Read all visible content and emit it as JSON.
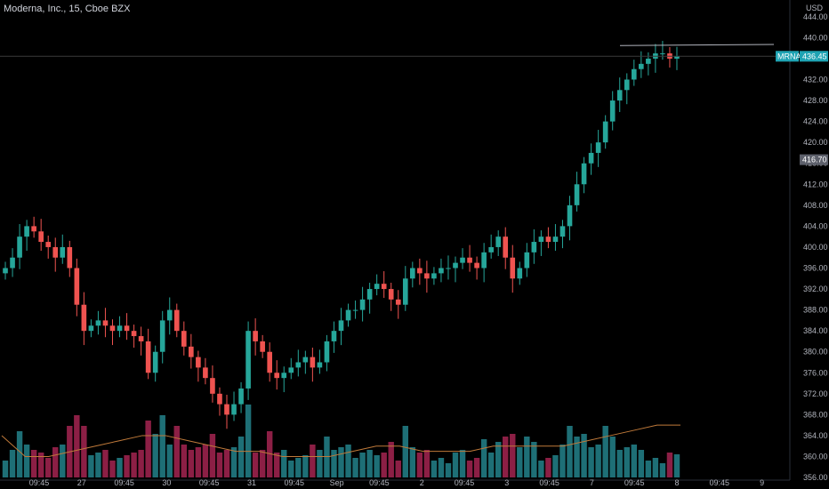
{
  "header": {
    "symbol_title": "Moderna, Inc., 15, Cboe BZX",
    "currency": "USD"
  },
  "markers": {
    "symbol": "MRNA",
    "last_price": "436.45",
    "crosshair_price": "416.70"
  },
  "colors": {
    "background": "#000000",
    "up": "#26a69a",
    "down": "#ef5350",
    "up_volume": "#1e6f76",
    "down_volume": "#8c1f45",
    "volume_ma": "#c07a3a",
    "tag": "#1fa3b3",
    "crosshair_tag": "#5d606b",
    "trendline": "#b2b5be"
  },
  "chart_data": {
    "type": "candlestick",
    "title": "Moderna, Inc., 15, Cboe BZX",
    "ylabel": "USD",
    "y_ticks": [
      "444.00",
      "440.00",
      "436.00",
      "432.00",
      "428.00",
      "424.00",
      "420.00",
      "416.00",
      "412.00",
      "408.00",
      "404.00",
      "400.00",
      "396.00",
      "392.00",
      "388.00",
      "384.00",
      "380.00",
      "376.00",
      "372.00",
      "368.00",
      "364.00",
      "360.00",
      "356.00"
    ],
    "ylim": [
      355.5,
      445.5
    ],
    "x_ticks": [
      "09:45",
      "27",
      "09:45",
      "30",
      "09:45",
      "31",
      "09:45",
      "Sep",
      "09:45",
      "2",
      "09:45",
      "3",
      "09:45",
      "7",
      "09:45",
      "8",
      "09:45",
      "9"
    ],
    "series": [
      {
        "name": "MRNA",
        "approx_closes": [
          396,
          398,
          402,
          404,
          403,
          401,
          400,
          398,
          400,
          396,
          389,
          384,
          385,
          386,
          385,
          384,
          385,
          384,
          383,
          382,
          376,
          380,
          386,
          388,
          384,
          381,
          379,
          377,
          375,
          372,
          370,
          368,
          370,
          373,
          384,
          382,
          380,
          376,
          375,
          376,
          377,
          378,
          379,
          377,
          378,
          382,
          384,
          386,
          388,
          388,
          390,
          392,
          393,
          392,
          390,
          389,
          394,
          396,
          395,
          394,
          395,
          396,
          396,
          397,
          398,
          397,
          396,
          399,
          400,
          402,
          398,
          394,
          396,
          399,
          401,
          402,
          401,
          402,
          404,
          408,
          412,
          416,
          418,
          420,
          424,
          428,
          430,
          432,
          434,
          435,
          436,
          437,
          437,
          436,
          436.45
        ],
        "volume_ma_approx": [
          364,
          360,
          360,
          361,
          362,
          363,
          364,
          364,
          363,
          362,
          361,
          361,
          360,
          360,
          360,
          361,
          362,
          362,
          361,
          361,
          361,
          362,
          362,
          362,
          362,
          363,
          364,
          365,
          366,
          366
        ]
      }
    ],
    "trendline_level": 438.5,
    "last_price": 436.45,
    "crosshair_price": 416.7
  }
}
